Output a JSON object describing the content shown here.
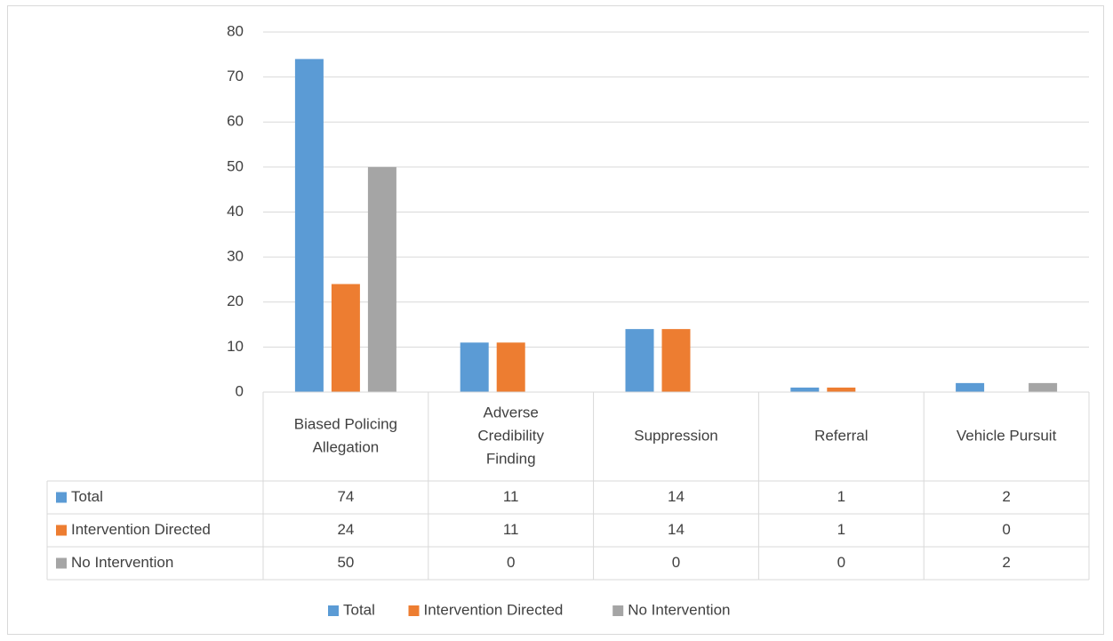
{
  "chart_data": {
    "type": "bar",
    "title": "",
    "xlabel": "",
    "ylabel": "",
    "ylim": [
      0,
      80
    ],
    "yticks": [
      0,
      10,
      20,
      30,
      40,
      50,
      60,
      70,
      80
    ],
    "grid": true,
    "legend_position": "bottom",
    "categories": [
      [
        "Biased Policing",
        "Allegation"
      ],
      [
        "Adverse",
        "Credibility",
        "Finding"
      ],
      [
        "Suppression"
      ],
      [
        "Referral"
      ],
      [
        "Vehicle Pursuit"
      ]
    ],
    "series": [
      {
        "name": "Total",
        "color": "#5b9bd5",
        "values": [
          74,
          11,
          14,
          1,
          2
        ]
      },
      {
        "name": "Intervention Directed",
        "color": "#ed7d31",
        "values": [
          24,
          11,
          14,
          1,
          0
        ]
      },
      {
        "name": "No Intervention",
        "color": "#a5a5a5",
        "values": [
          50,
          0,
          0,
          0,
          2
        ]
      }
    ],
    "data_table": true
  }
}
